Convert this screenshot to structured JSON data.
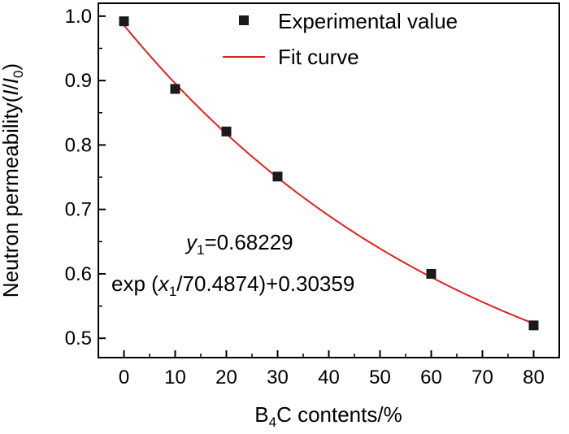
{
  "chart_data": {
    "type": "scatter",
    "xlabel_main": "B",
    "xlabel_sub": "4",
    "xlabel_rest": "C contents/%",
    "ylabel_main": "Neutron permeability(",
    "ylabel_i": "I",
    "ylabel_slash": "/",
    "ylabel_i0": "I",
    "ylabel_sub": "0",
    "ylabel_close": ")",
    "xlim": [
      -5,
      85
    ],
    "ylim": [
      0.47,
      1.02
    ],
    "x_ticks": [
      0,
      10,
      20,
      30,
      40,
      50,
      60,
      70,
      80
    ],
    "x_tick_labels": [
      "0",
      "10",
      "20",
      "30",
      "40",
      "50",
      "60",
      "70",
      "80"
    ],
    "y_ticks": [
      0.5,
      0.6,
      0.7,
      0.8,
      0.9,
      1.0
    ],
    "y_tick_labels": [
      "0.5",
      "0.6",
      "0.7",
      "0.8",
      "0.9",
      "1.0"
    ],
    "series": [
      {
        "name": "Experimental value",
        "kind": "points",
        "marker": "square",
        "color": "#1a1a1a",
        "x": [
          0,
          10,
          20,
          30,
          60,
          80
        ],
        "y": [
          0.992,
          0.887,
          0.821,
          0.751,
          0.6,
          0.52
        ]
      },
      {
        "name": "Fit curve",
        "kind": "line",
        "color": "#e02020",
        "model": {
          "a": 0.68229,
          "t": 70.4874,
          "c": 0.30359
        }
      }
    ],
    "legend_position": "top-right",
    "equation_line1_y": "y",
    "equation_line1_sub": "1",
    "equation_line1_rest": "=0.68229",
    "equation_line2_pre": "exp (",
    "equation_line2_x": "x",
    "equation_line2_sub": "1",
    "equation_line2_rest": "/70.4874)+0.30359"
  }
}
